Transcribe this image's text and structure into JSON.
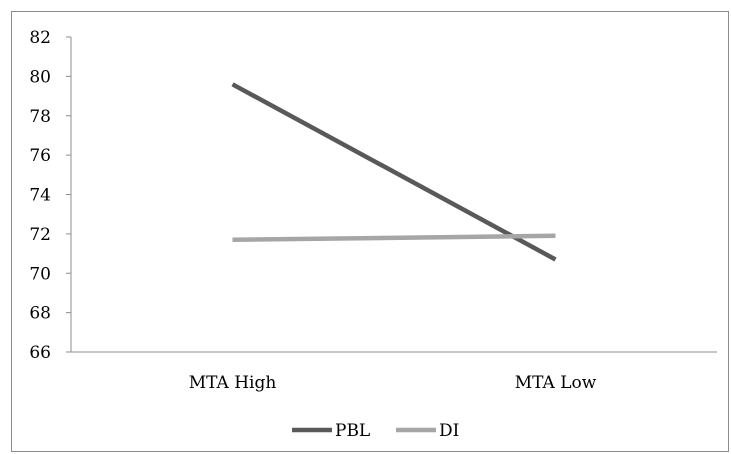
{
  "chart_data": {
    "type": "line",
    "title": "",
    "xlabel": "",
    "ylabel": "",
    "categories": [
      "MTA High",
      "MTA Low"
    ],
    "ylim": [
      66,
      82
    ],
    "yticks": [
      66,
      68,
      70,
      72,
      74,
      76,
      78,
      80,
      82
    ],
    "grid": false,
    "legend_position": "bottom",
    "series": [
      {
        "name": "PBL",
        "values": [
          79.6,
          70.7
        ],
        "color": "#595959"
      },
      {
        "name": "DI",
        "values": [
          71.7,
          71.9
        ],
        "color": "#a6a6a6"
      }
    ]
  }
}
